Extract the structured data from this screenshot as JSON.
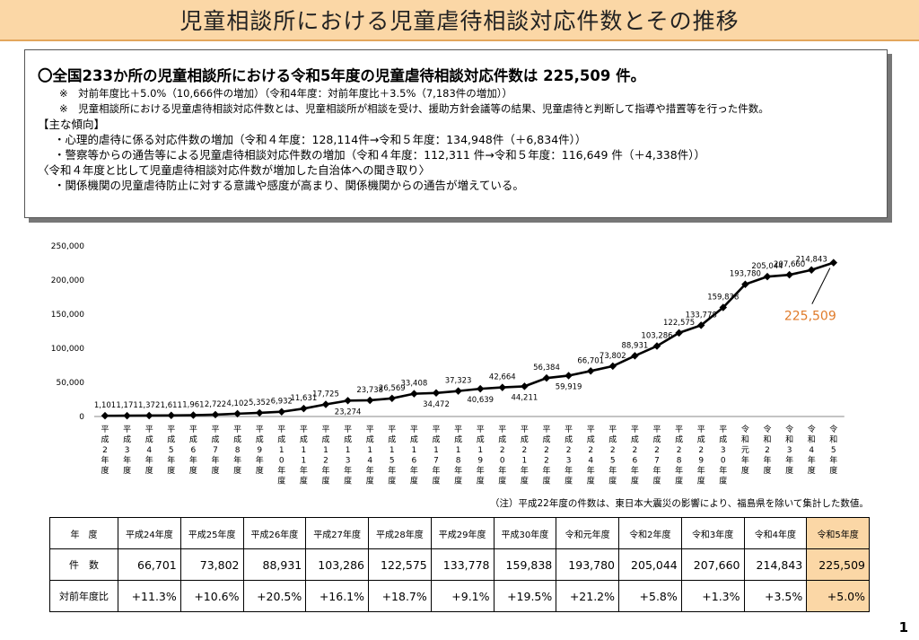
{
  "header": {
    "title": "児童相談所における児童虐待相談対応件数とその推移"
  },
  "summary": {
    "headline": "〇全国233か所の児童相談所における令和5年度の児童虐待相談対応件数は 225,509 件。",
    "notes": [
      "※　対前年度比＋5.0%（10,666件の増加）（令和4年度：対前年度比＋3.5%（7,183件の増加））",
      "※　児童相談所における児童虐待相談対応件数とは、児童相談所が相談を受け、援助方針会議等の結果、児童虐待と判断して指導や措置等を行った件数。"
    ],
    "section1_title": "【主な傾向】",
    "section1_items": [
      "・心理的虐待に係る対応件数の増加（令和４年度：128,114件→令和５年度：134,948件（＋6,834件））",
      "・警察等からの通告等による児童虐待相談対応件数の増加（令和４年度：112,311 件→令和５年度：116,649 件（＋4,338件））"
    ],
    "section2_title": "〈令和４年度と比して児童虐待相談対応件数が増加した自治体への聞き取り〉",
    "section2_items": [
      "・関係機関の児童虐待防止に対する意識や感度が高まり、関係機関からの通告が増えている。"
    ]
  },
  "chart_data": {
    "type": "line",
    "ylim": [
      0,
      250000
    ],
    "yticks": [
      "0",
      "50,000",
      "100,000",
      "150,000",
      "200,000",
      "250,000"
    ],
    "categories": [
      "平成2年度",
      "平成3年度",
      "平成4年度",
      "平成5年度",
      "平成6年度",
      "平成7年度",
      "平成8年度",
      "平成9年度",
      "平成10年度",
      "平成11年度",
      "平成12年度",
      "平成13年度",
      "平成14年度",
      "平成15年度",
      "平成16年度",
      "平成17年度",
      "平成18年度",
      "平成19年度",
      "平成20年度",
      "平成21年度",
      "平成22年度",
      "平成23年度",
      "平成24年度",
      "平成25年度",
      "平成26年度",
      "平成27年度",
      "平成28年度",
      "平成29年度",
      "平成30年度",
      "令和元年度",
      "令和2年度",
      "令和3年度",
      "令和4年度",
      "令和5年度"
    ],
    "values": [
      1101,
      1171,
      1372,
      1611,
      1961,
      2722,
      4102,
      5352,
      6932,
      11631,
      17725,
      23274,
      23738,
      26569,
      33408,
      34472,
      37323,
      40639,
      42664,
      44211,
      56384,
      59919,
      66701,
      73802,
      88931,
      103286,
      122575,
      133778,
      159838,
      193780,
      205044,
      207660,
      214843,
      225509
    ],
    "value_labels": [
      "1,101",
      "1,171",
      "1,372",
      "1,611",
      "1,961",
      "2,722",
      "4,102",
      "5,352",
      "6,932",
      "11,631",
      "17,725",
      "23,274",
      "23,738",
      "26,569",
      "33,408",
      "34,472",
      "37,323",
      "40,639",
      "42,664",
      "44,211",
      "56,384",
      "59,919",
      "66,701",
      "73,802",
      "88,931",
      "103,286",
      "122,575",
      "133,778",
      "159,838",
      "193,780",
      "205,044",
      "207,660",
      "214,843",
      ""
    ],
    "highlight_label": "225,509",
    "highlight_color": "#e07b2a",
    "line_color": "#000000"
  },
  "footnote": "（注）平成22年度の件数は、東日本大震災の影響により、福島県を除いて集計した数値。",
  "table": {
    "rows": [
      [
        "年　度",
        "平成24年度",
        "平成25年度",
        "平成26年度",
        "平成27年度",
        "平成28年度",
        "平成29年度",
        "平成30年度",
        "令和元年度",
        "令和2年度",
        "令和3年度",
        "令和4年度",
        "令和5年度"
      ],
      [
        "件　数",
        "66,701",
        "73,802",
        "88,931",
        "103,286",
        "122,575",
        "133,778",
        "159,838",
        "193,780",
        "205,044",
        "207,660",
        "214,843",
        "225,509"
      ],
      [
        "対前年度比",
        "+11.3%",
        "+10.6%",
        "+20.5%",
        "+16.1%",
        "+18.7%",
        "+9.1%",
        "+19.5%",
        "+21.2%",
        "+5.8%",
        "+1.3%",
        "+3.5%",
        "+5.0%"
      ]
    ],
    "highlight_color": "#fbd7a6"
  },
  "page_number": "1"
}
